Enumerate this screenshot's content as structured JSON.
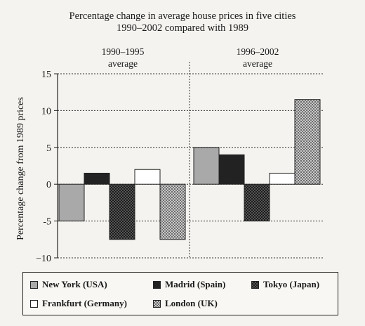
{
  "chart_data": {
    "type": "bar",
    "title_line1": "Percentage change in average house prices in five cities",
    "title_line2": "1990–2002 compared with 1989",
    "ylabel": "Percentage change from 1989 prices",
    "groups": [
      "1990–1995 average",
      "1996–2002 average"
    ],
    "group_labels": [
      [
        "1990–1995",
        "average"
      ],
      [
        "1996–2002",
        "average"
      ]
    ],
    "ylim": [
      -10,
      15
    ],
    "yticks": [
      -10,
      -5,
      0,
      5,
      10,
      15
    ],
    "ytick_labels": [
      "−10",
      "-5",
      "0",
      "5",
      "10",
      "15"
    ],
    "grid": true,
    "legend_position": "bottom",
    "series": [
      {
        "name": "New York (USA)",
        "values": [
          -5,
          5
        ],
        "color": "#a9a9a9",
        "pattern": "solid-light"
      },
      {
        "name": "Madrid (Spain)",
        "values": [
          1.5,
          4
        ],
        "color": "#222222",
        "pattern": "solid-dark"
      },
      {
        "name": "Tokyo (Japan)",
        "values": [
          -7.5,
          -5
        ],
        "color": "#3a3a3a",
        "pattern": "checker"
      },
      {
        "name": "Frankfurt (Germany)",
        "values": [
          2,
          1.5
        ],
        "color": "#ffffff",
        "pattern": "white"
      },
      {
        "name": "London (UK)",
        "values": [
          -7.5,
          11.5
        ],
        "color": "#8a8a8a",
        "pattern": "crosshatch"
      }
    ]
  }
}
